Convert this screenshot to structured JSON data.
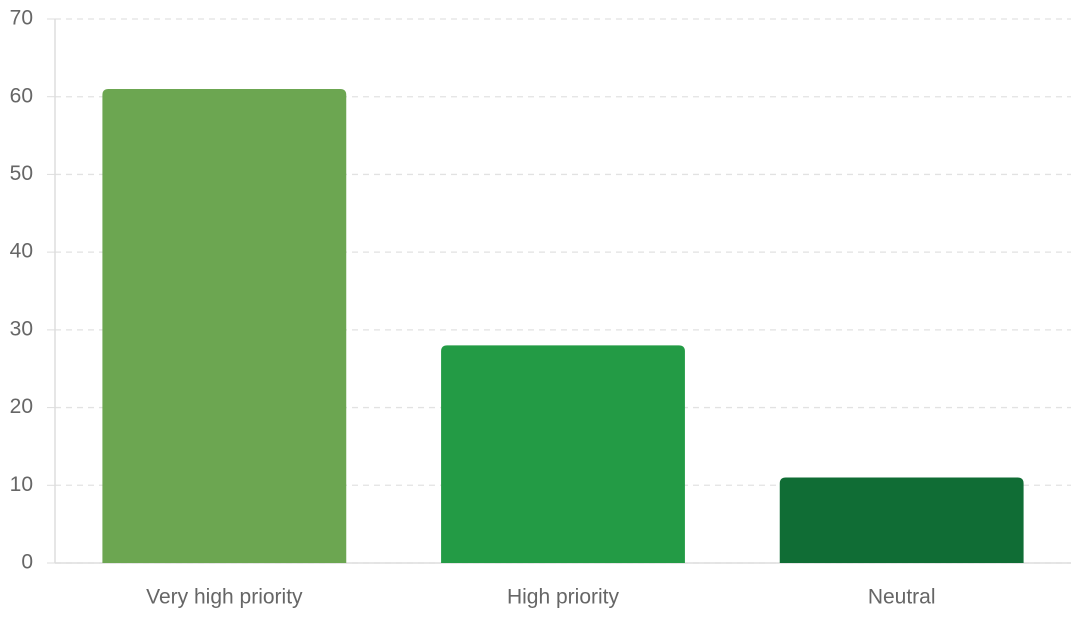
{
  "chart_data": {
    "type": "bar",
    "categories": [
      "Very high priority",
      "High priority",
      "Neutral"
    ],
    "values": [
      61,
      28,
      11
    ],
    "colors": [
      "#6ca651",
      "#239b45",
      "#106d35"
    ],
    "ylim": [
      0,
      70
    ],
    "yticks": [
      0,
      10,
      20,
      30,
      40,
      50,
      60,
      70
    ],
    "grid": true
  }
}
